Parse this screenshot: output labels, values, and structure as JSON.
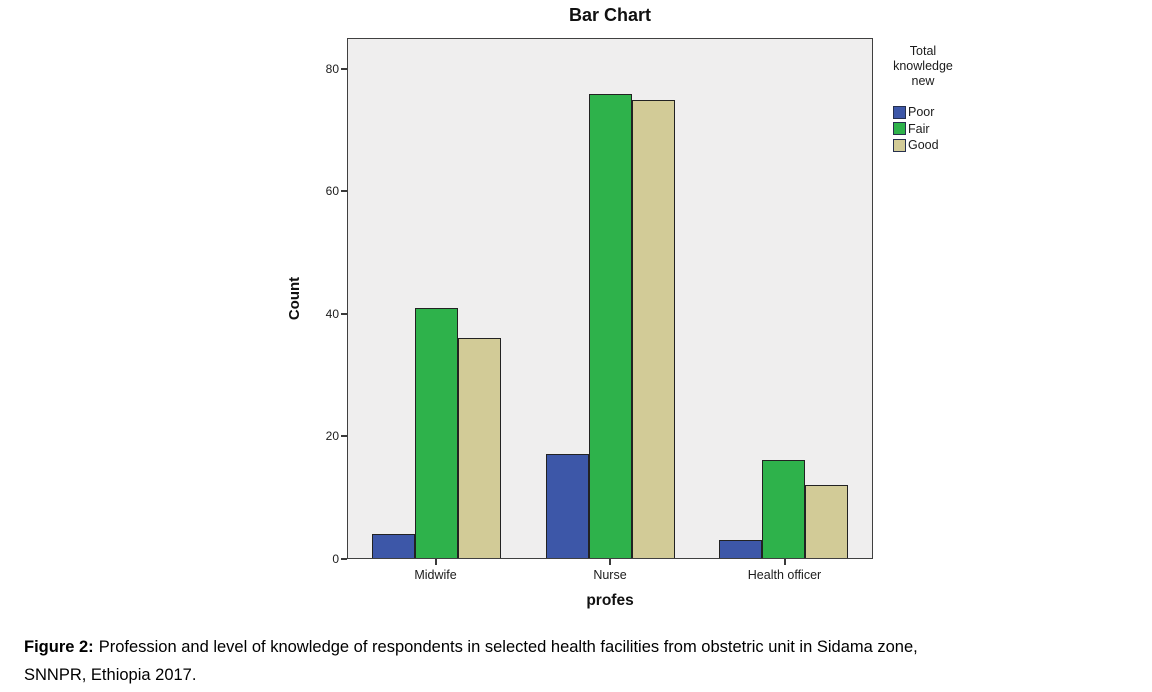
{
  "figure": {
    "title": "Bar Chart",
    "caption": {
      "label": "Figure 2:",
      "line1": "Profession and level of knowledge of respondents in selected health facilities from obstetric unit in Sidama zone,",
      "line2": "SNNPR, Ethiopia 2017."
    }
  },
  "chart_data": {
    "type": "bar",
    "title": "Bar Chart",
    "categories": [
      "Midwife",
      "Nurse",
      "Health officer"
    ],
    "series": [
      {
        "name": "Poor",
        "color": "#3D57A8",
        "values": [
          4,
          17,
          3
        ]
      },
      {
        "name": "Fair",
        "color": "#2EB24B",
        "values": [
          41,
          76,
          16
        ]
      },
      {
        "name": "Good",
        "color": "#D2CB97",
        "values": [
          36,
          75,
          12
        ]
      }
    ],
    "xlabel": "profes",
    "ylabel": "Count",
    "ylim": [
      0,
      85
    ],
    "yticks": [
      0,
      20,
      40,
      60,
      80
    ],
    "legend_title": "Total knowledge new",
    "legend_position": "right",
    "plot_background": "#EFEEEE",
    "grid": false
  }
}
